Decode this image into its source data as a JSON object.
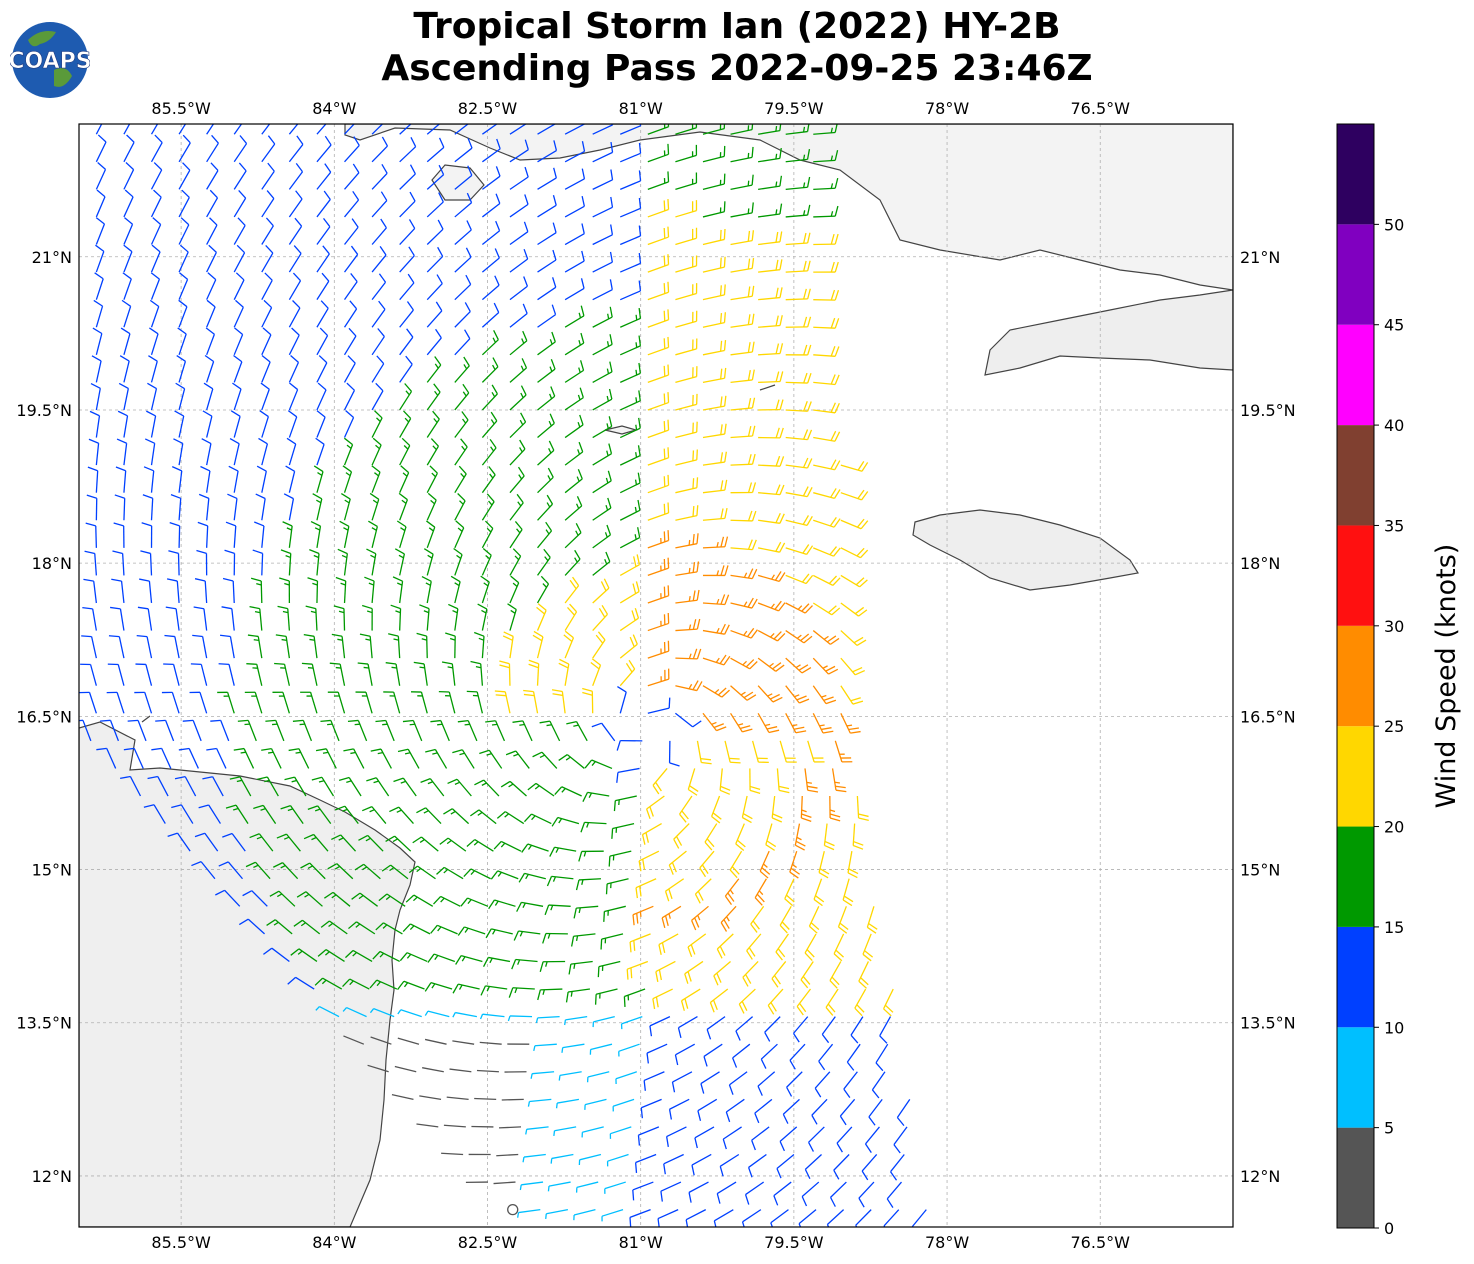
{
  "title": {
    "line1": "Tropical Storm Ian (2022) HY-2B",
    "line2": "Ascending Pass 2022-09-25 23:46Z"
  },
  "logo": {
    "text": "COAPS"
  },
  "map": {
    "lon_range": [
      -86.5,
      -75.2
    ],
    "lat_range": [
      11.5,
      22.3
    ],
    "lon_ticks": [
      {
        "value": -85.5,
        "label": "85.5°W"
      },
      {
        "value": -84.0,
        "label": "84°W"
      },
      {
        "value": -82.5,
        "label": "82.5°W"
      },
      {
        "value": -81.0,
        "label": "81°W"
      },
      {
        "value": -79.5,
        "label": "79.5°W"
      },
      {
        "value": -78.0,
        "label": "78°W"
      },
      {
        "value": -76.5,
        "label": "76.5°W"
      }
    ],
    "lat_ticks": [
      {
        "value": 21.0,
        "label": "21°N"
      },
      {
        "value": 19.5,
        "label": "19.5°N"
      },
      {
        "value": 18.0,
        "label": "18°N"
      },
      {
        "value": 16.5,
        "label": "16.5°N"
      },
      {
        "value": 15.0,
        "label": "15°N"
      },
      {
        "value": 13.5,
        "label": "13.5°N"
      },
      {
        "value": 12.0,
        "label": "12°N"
      }
    ],
    "grid": true,
    "land_color": "#f2f2f2",
    "coast_color": "#444444"
  },
  "storm_center": {
    "lon": -80.95,
    "lat": 16.35
  },
  "colorbar": {
    "label": "Wind Speed (knots)",
    "ticks": [
      0,
      5,
      10,
      15,
      20,
      25,
      30,
      35,
      40,
      45,
      50
    ],
    "bins": [
      {
        "min": 0,
        "max": 5,
        "color": "#555555"
      },
      {
        "min": 5,
        "max": 10,
        "color": "#00bfff"
      },
      {
        "min": 10,
        "max": 15,
        "color": "#0040ff"
      },
      {
        "min": 15,
        "max": 20,
        "color": "#009900"
      },
      {
        "min": 20,
        "max": 25,
        "color": "#ffd700"
      },
      {
        "min": 25,
        "max": 30,
        "color": "#ff8c00"
      },
      {
        "min": 30,
        "max": 35,
        "color": "#ff1010"
      },
      {
        "min": 35,
        "max": 40,
        "color": "#804030"
      },
      {
        "min": 40,
        "max": 45,
        "color": "#ff00ff"
      },
      {
        "min": 45,
        "max": 50,
        "color": "#8000c0"
      },
      {
        "min": 50,
        "max": 55,
        "color": "#2e0060"
      }
    ]
  }
}
